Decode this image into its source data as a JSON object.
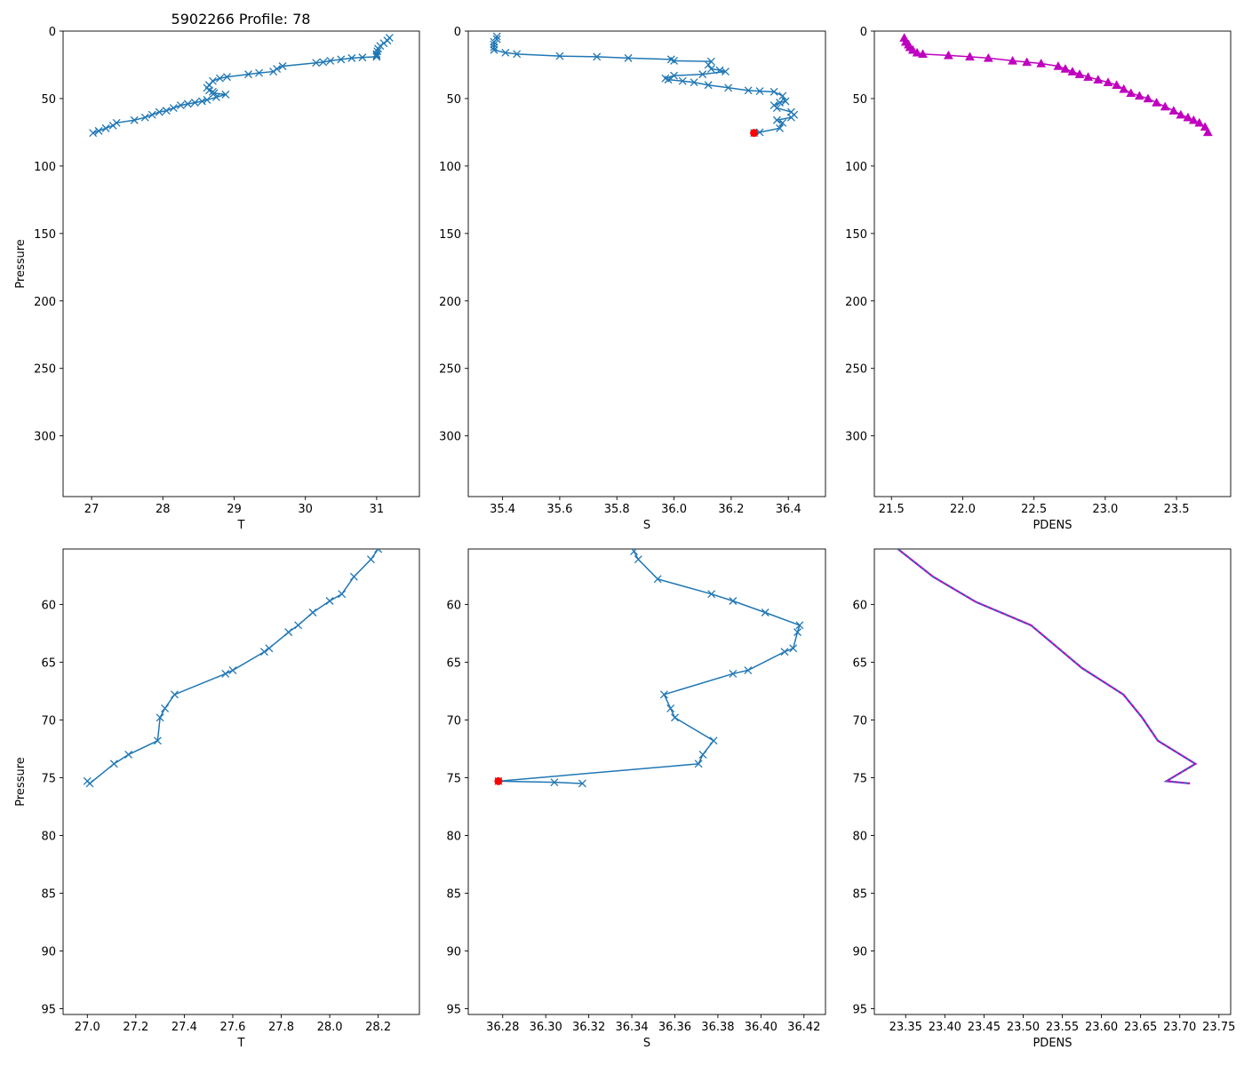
{
  "figure_title": "5902266 Profile: 78",
  "colors": {
    "line": "#1f77b4",
    "marker": "#1f77b4",
    "highlight": "#ff0000",
    "density": "#bf00bf"
  },
  "chart_data": [
    {
      "id": "top-temperature",
      "type": "line",
      "title": "5902266 Profile: 78",
      "xlabel": "T",
      "ylabel": "Pressure",
      "xlim": [
        26.6,
        31.6
      ],
      "ylim": [
        345,
        0
      ],
      "xticks": [
        27,
        28,
        29,
        30,
        31
      ],
      "yticks": [
        0,
        50,
        100,
        150,
        200,
        250,
        300
      ],
      "marker": "x",
      "series": [
        {
          "name": "T",
          "x": [
            31.18,
            31.15,
            31.1,
            31.05,
            31.02,
            31.01,
            31.0,
            31.0,
            31.0,
            30.8,
            30.65,
            30.5,
            30.35,
            30.25,
            30.15,
            29.68,
            29.6,
            29.55,
            29.35,
            29.2,
            28.9,
            28.8,
            28.7,
            28.65,
            28.62,
            28.65,
            28.7,
            28.72,
            28.88,
            28.75,
            28.62,
            28.55,
            28.45,
            28.35,
            28.25,
            28.15,
            28.05,
            27.95,
            27.85,
            27.75,
            27.6,
            27.35,
            27.3,
            27.2,
            27.1,
            27.02
          ],
          "y": [
            5,
            7,
            9,
            11,
            13,
            15,
            17,
            18,
            19,
            19.5,
            20,
            21,
            22,
            23,
            23.5,
            26,
            28,
            30,
            31,
            32,
            34,
            35,
            37,
            40,
            42,
            44,
            45,
            46,
            47,
            49,
            51,
            52,
            53,
            54,
            55,
            57,
            59,
            60,
            62,
            64,
            66,
            68,
            70,
            72,
            74,
            75.5
          ]
        }
      ]
    },
    {
      "id": "top-salinity",
      "type": "line",
      "title": "",
      "xlabel": "S",
      "ylabel": "",
      "xlim": [
        35.28,
        36.53
      ],
      "ylim": [
        345,
        0
      ],
      "xticks": [
        35.4,
        35.6,
        35.8,
        36.0,
        36.2,
        36.4
      ],
      "yticks": [
        0,
        50,
        100,
        150,
        200,
        250,
        300
      ],
      "marker": "x",
      "series": [
        {
          "name": "S",
          "x": [
            35.38,
            35.38,
            35.37,
            35.37,
            35.37,
            35.37,
            35.41,
            35.45,
            35.6,
            35.73,
            35.84,
            35.99,
            36.0,
            36.13,
            36.12,
            36.13,
            36.16,
            36.18,
            36.1,
            36.0,
            35.97,
            35.98,
            36.03,
            36.07,
            36.12,
            36.19,
            36.26,
            36.3,
            36.35,
            36.38,
            36.39,
            36.37,
            36.35,
            36.36,
            36.41,
            36.42,
            36.41,
            36.36,
            36.38,
            36.37,
            36.3,
            36.28
          ],
          "y": [
            4,
            6,
            8,
            10,
            12,
            14,
            16,
            17,
            18.5,
            19,
            20,
            21,
            22,
            22.5,
            25,
            28,
            29,
            30,
            32,
            33,
            35,
            36,
            37,
            38,
            40,
            42,
            44,
            44.5,
            45,
            48,
            52,
            53,
            55,
            57,
            60,
            62,
            64,
            66,
            68,
            72,
            75,
            75.5
          ]
        }
      ],
      "highlight": {
        "x": 36.28,
        "y": 75.5
      }
    },
    {
      "id": "top-density",
      "type": "line",
      "title": "",
      "xlabel": "PDENS",
      "ylabel": "",
      "xlim": [
        21.38,
        23.88
      ],
      "ylim": [
        345,
        0
      ],
      "xticks": [
        21.5,
        22.0,
        22.5,
        23.0,
        23.5
      ],
      "yticks": [
        0,
        50,
        100,
        150,
        200,
        250,
        300
      ],
      "marker": "^",
      "series": [
        {
          "name": "PDENS",
          "x": [
            21.59,
            21.6,
            21.62,
            21.63,
            21.65,
            21.68,
            21.72,
            21.9,
            22.05,
            22.18,
            22.35,
            22.45,
            22.55,
            22.67,
            22.72,
            22.77,
            22.82,
            22.88,
            22.95,
            23.02,
            23.08,
            23.13,
            23.18,
            23.24,
            23.3,
            23.36,
            23.42,
            23.48,
            23.53,
            23.58,
            23.62,
            23.66,
            23.7,
            23.72
          ],
          "y": [
            5,
            8,
            10,
            12,
            14,
            16,
            17,
            18,
            19,
            20,
            22,
            23,
            24,
            26,
            28,
            30,
            32,
            34,
            36,
            38,
            40,
            43,
            46,
            48,
            50,
            53,
            56,
            59,
            62,
            64,
            66,
            68,
            71,
            75
          ]
        }
      ]
    },
    {
      "id": "bottom-temperature",
      "type": "line",
      "title": "",
      "xlabel": "T",
      "ylabel": "Pressure",
      "xlim": [
        26.9,
        28.37
      ],
      "ylim": [
        95.5,
        55.2
      ],
      "xticks": [
        27.0,
        27.2,
        27.4,
        27.6,
        27.8,
        28.0,
        28.2
      ],
      "yticks": [
        60,
        65,
        70,
        75,
        80,
        85,
        90,
        95
      ],
      "marker": "x",
      "series": [
        {
          "name": "T",
          "x": [
            28.2,
            28.17,
            28.1,
            28.05,
            28.0,
            27.93,
            27.87,
            27.83,
            27.75,
            27.73,
            27.6,
            27.57,
            27.36,
            27.32,
            27.3,
            27.29,
            27.17,
            27.11,
            27.01,
            27.0
          ],
          "y": [
            55.2,
            56.1,
            57.6,
            59.1,
            59.7,
            60.7,
            61.8,
            62.4,
            63.8,
            64.1,
            65.7,
            66.0,
            67.8,
            69.0,
            69.8,
            71.8,
            73.0,
            73.8,
            75.5,
            75.3
          ]
        }
      ]
    },
    {
      "id": "bottom-salinity",
      "type": "line",
      "title": "",
      "xlabel": "S",
      "ylabel": "",
      "xlim": [
        36.264,
        36.43
      ],
      "ylim": [
        95.5,
        55.2
      ],
      "xticks": [
        36.28,
        36.3,
        36.32,
        36.34,
        36.36,
        36.38,
        36.4,
        36.42
      ],
      "yticks": [
        60,
        65,
        70,
        75,
        80,
        85,
        90,
        95
      ],
      "marker": "x",
      "series": [
        {
          "name": "S",
          "x": [
            36.341,
            36.343,
            36.352,
            36.377,
            36.387,
            36.402,
            36.418,
            36.417,
            36.415,
            36.411,
            36.394,
            36.387,
            36.355,
            36.358,
            36.36,
            36.378,
            36.373,
            36.371,
            36.278,
            36.304,
            36.317
          ],
          "y": [
            55.4,
            56.1,
            57.8,
            59.1,
            59.7,
            60.7,
            61.8,
            62.4,
            63.8,
            64.1,
            65.7,
            66.0,
            67.8,
            69.0,
            69.8,
            71.8,
            73.0,
            73.8,
            75.3,
            75.4,
            75.5
          ]
        }
      ],
      "highlight": {
        "x": 36.278,
        "y": 75.3
      }
    },
    {
      "id": "bottom-density",
      "type": "line",
      "title": "",
      "xlabel": "PDENS",
      "ylabel": "",
      "xlim": [
        23.31,
        23.765
      ],
      "ylim": [
        95.5,
        55.2
      ],
      "xticks": [
        23.35,
        23.4,
        23.45,
        23.5,
        23.55,
        23.6,
        23.65,
        23.7,
        23.75
      ],
      "yticks": [
        60,
        65,
        70,
        75,
        80,
        85,
        90,
        95
      ],
      "marker": "none",
      "series": [
        {
          "name": "PDENS",
          "x": [
            23.34,
            23.385,
            23.44,
            23.51,
            23.575,
            23.628,
            23.652,
            23.672,
            23.72,
            23.683,
            23.713
          ],
          "y": [
            55.2,
            57.6,
            59.8,
            61.8,
            65.5,
            67.8,
            69.8,
            71.8,
            73.8,
            75.3,
            75.5
          ]
        }
      ]
    }
  ]
}
